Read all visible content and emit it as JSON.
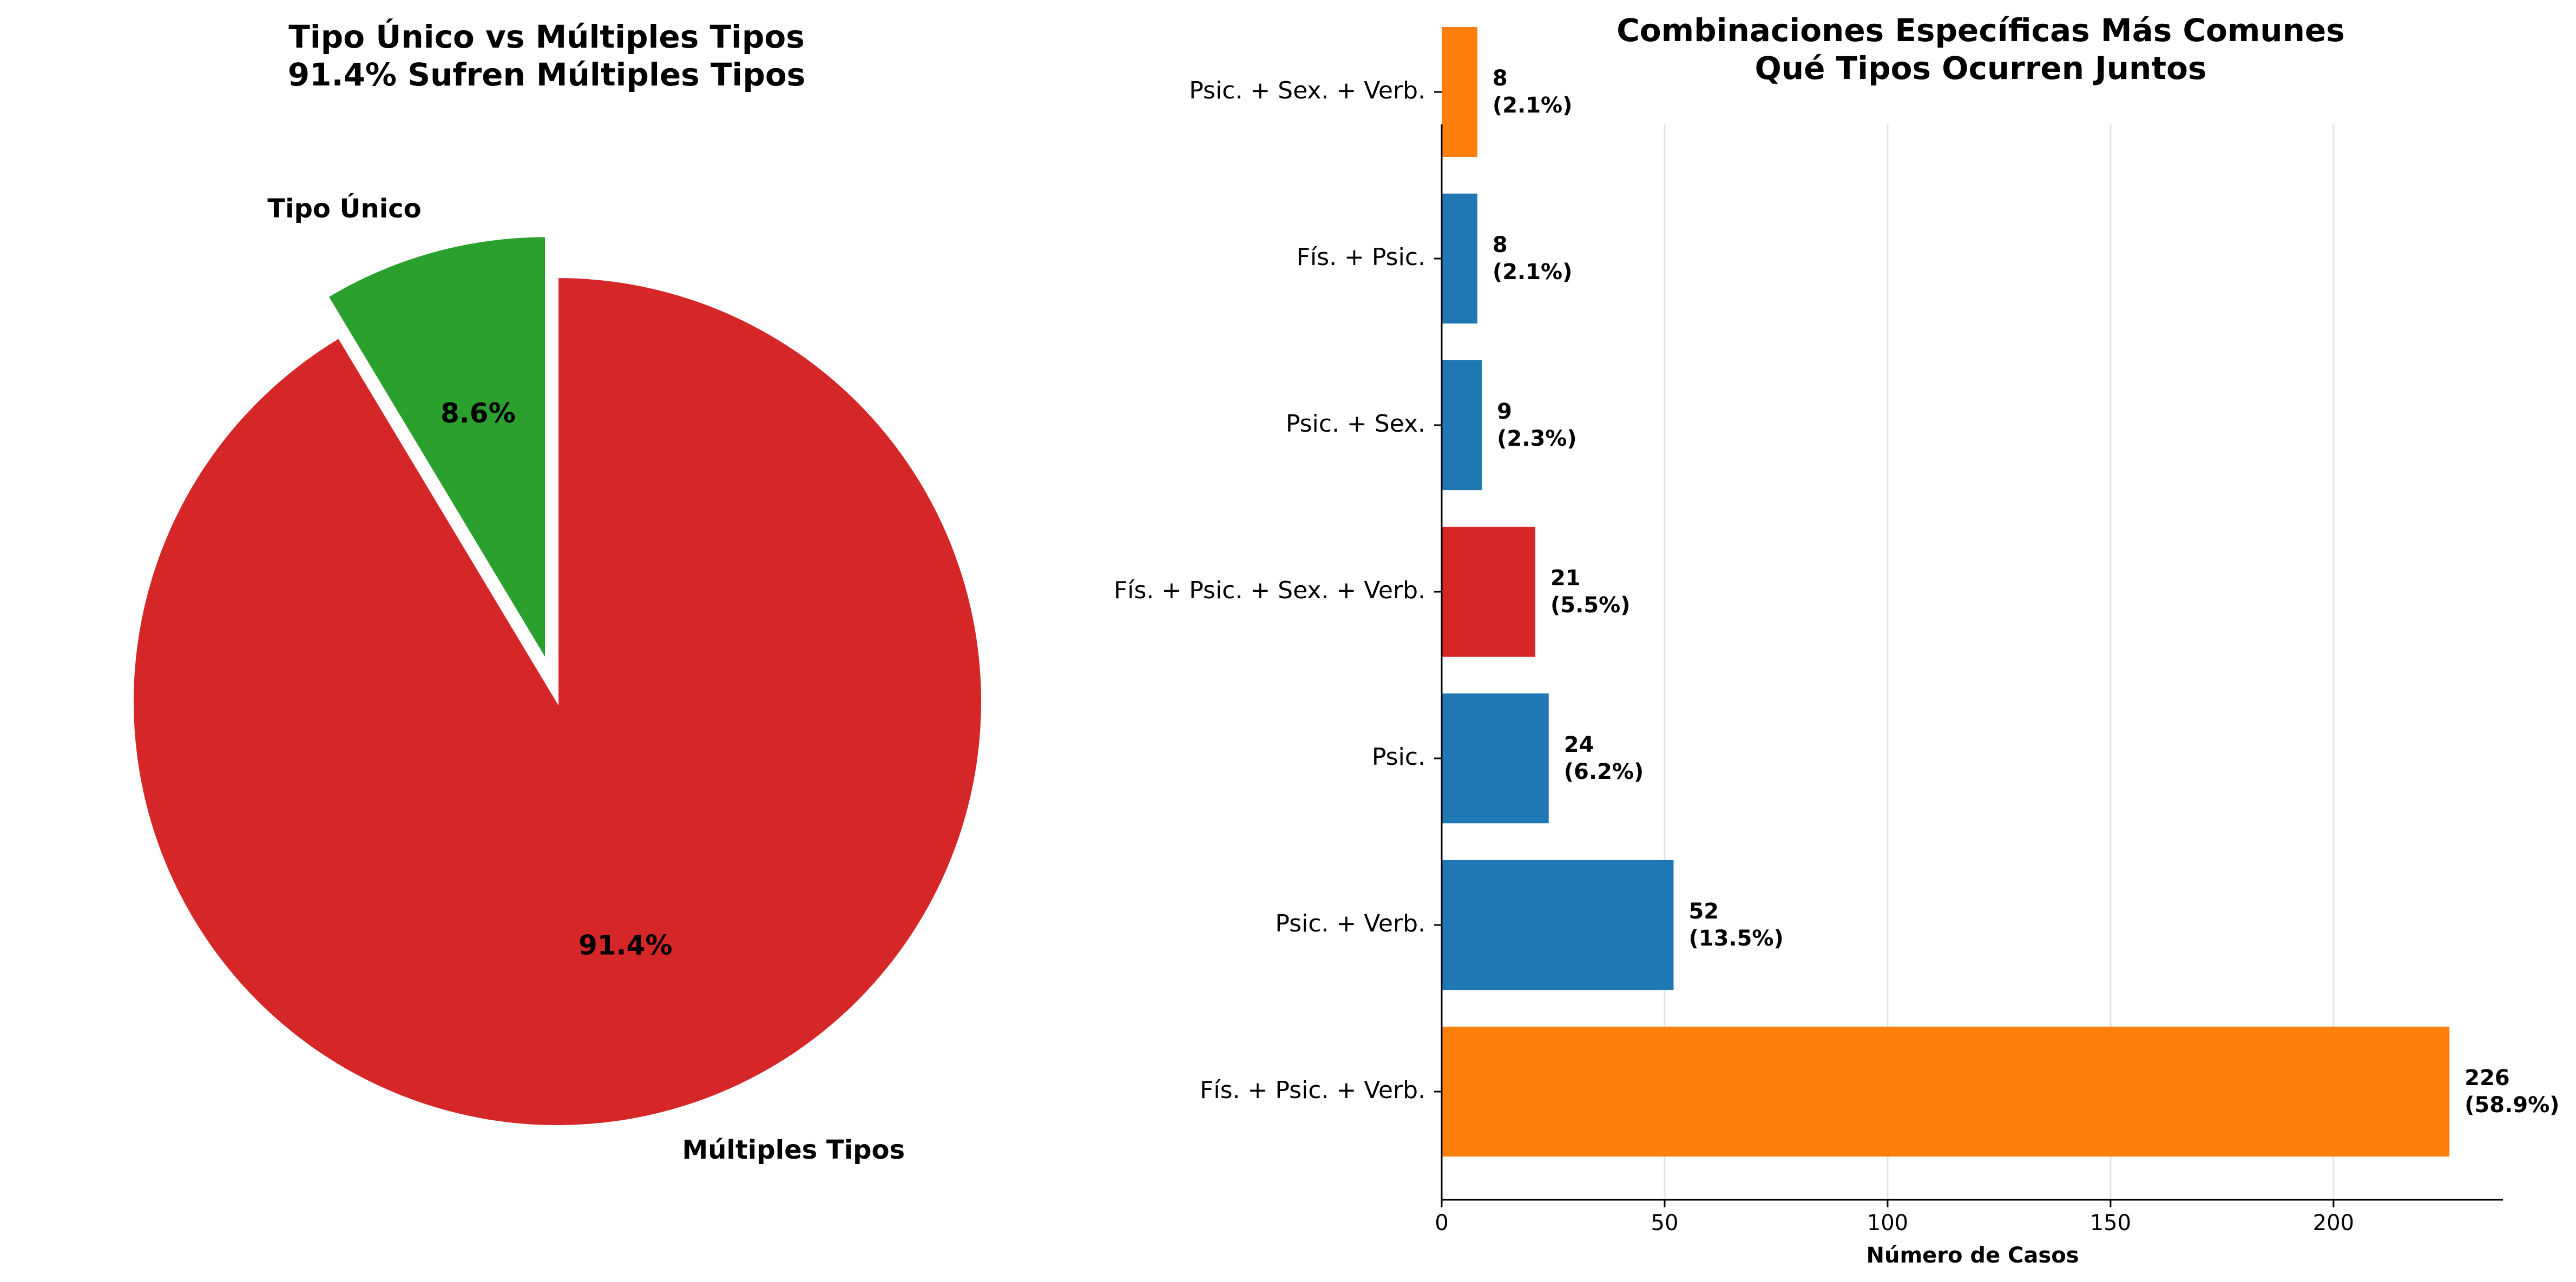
{
  "chart_data": [
    {
      "type": "pie",
      "title": "Tipo Único vs Múltiples Tipos\n91.4% Sufren Múltiples Tipos",
      "labels": [
        "Tipo Único",
        "Múltiples Tipos"
      ],
      "values": [
        8.6,
        91.4
      ],
      "percent_labels": [
        "8.6%",
        "91.4%"
      ],
      "colors": [
        "#2ca02c",
        "#d62728"
      ],
      "explode": [
        0.1,
        0
      ]
    },
    {
      "type": "bar",
      "orientation": "horizontal",
      "title": "Combinaciones Específicas Más Comunes\nQué Tipos Ocurren Juntos",
      "xlabel": "Número de Casos",
      "ylabel": "",
      "categories": [
        "Fís. + Psic. + Verb.",
        "Psic. + Verb.",
        "Psic.",
        "Fís. + Psic. + Sex. + Verb.",
        "Psic. + Sex.",
        "Fís. + Psic.",
        "Psic. + Sex. + Verb."
      ],
      "values": [
        226,
        52,
        24,
        21,
        9,
        8,
        8
      ],
      "value_labels": [
        [
          "226",
          "(58.9%)"
        ],
        [
          "52",
          "(13.5%)"
        ],
        [
          "24",
          "(6.2%)"
        ],
        [
          "21",
          "(5.5%)"
        ],
        [
          "9",
          "(2.3%)"
        ],
        [
          "8",
          "(2.1%)"
        ],
        [
          "8",
          "(2.1%)"
        ]
      ],
      "colors": [
        "#ff7f0e",
        "#1f77b4",
        "#1f77b4",
        "#d62728",
        "#1f77b4",
        "#1f77b4",
        "#ff7f0e"
      ],
      "xlim": [
        0,
        238
      ],
      "xticks": [
        0,
        50,
        100,
        150,
        200
      ],
      "grid": "x"
    }
  ]
}
